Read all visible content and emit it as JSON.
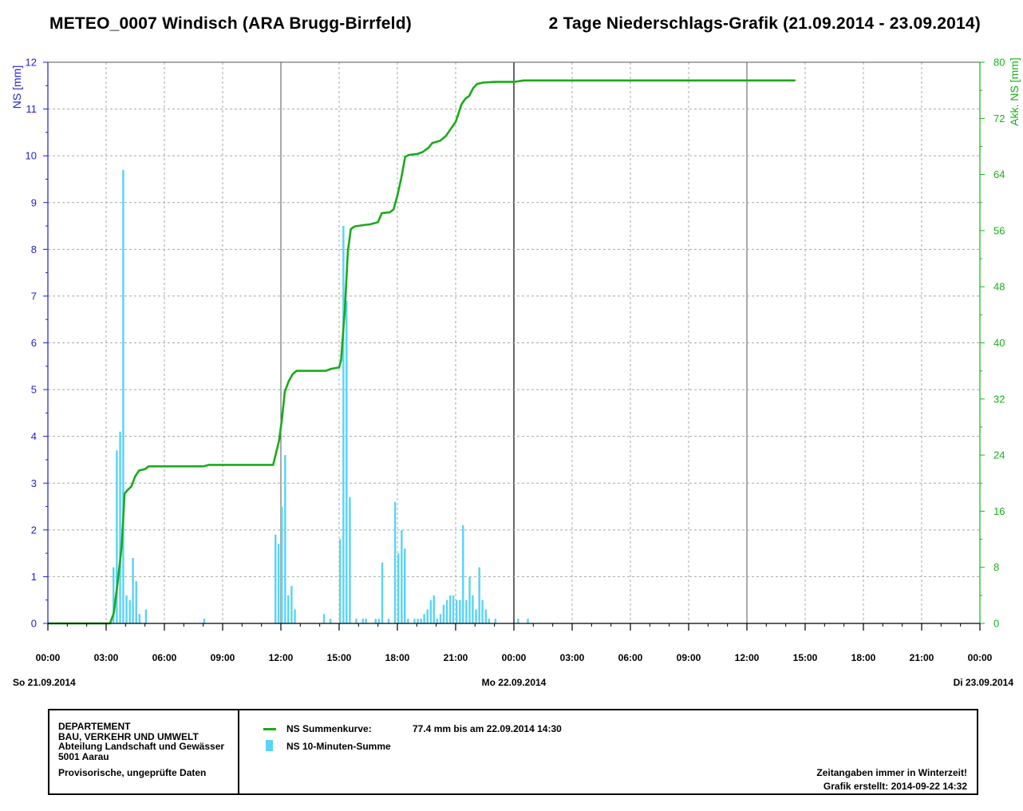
{
  "header": {
    "title_left": "METEO_0007 Windisch (ARA Brugg-Birrfeld)",
    "title_right": "2 Tage Niederschlags-Grafik (21.09.2014 - 23.09.2014)"
  },
  "chart_data": {
    "type": "bar",
    "title": "2 Tage Niederschlags-Grafik (21.09.2014 - 23.09.2014)",
    "ylabel_left": "NS [mm]",
    "ylabel_right": "Akk. NS [mm]",
    "x_range_hours": [
      0,
      48
    ],
    "ylim_left": [
      0,
      12
    ],
    "ylim_right": [
      0,
      80
    ],
    "left_ticks": [
      0,
      1,
      2,
      3,
      4,
      5,
      6,
      7,
      8,
      9,
      10,
      11,
      12
    ],
    "right_ticks": [
      0,
      8,
      16,
      24,
      32,
      40,
      48,
      56,
      64,
      72,
      80
    ],
    "x_tick_hours": [
      0,
      3,
      6,
      9,
      12,
      15,
      18,
      21,
      24,
      27,
      30,
      33,
      36,
      39,
      42,
      45,
      48
    ],
    "x_tick_labels": [
      "00:00",
      "03:00",
      "06:00",
      "09:00",
      "12:00",
      "15:00",
      "18:00",
      "21:00",
      "00:00",
      "03:00",
      "06:00",
      "09:00",
      "12:00",
      "15:00",
      "18:00",
      "21:00",
      "00:00"
    ],
    "day_labels": [
      {
        "hour": 0,
        "label": "So 21.09.2014"
      },
      {
        "hour": 24,
        "label": "Mo 22.09.2014"
      },
      {
        "hour": 48,
        "label": "Di 23.09.2014"
      }
    ],
    "day_separators_hours": [
      24
    ],
    "series": [
      {
        "name": "NS 10-Minuten-Summe",
        "type": "bar",
        "color": "#5ad4f6",
        "bar_width_hours": 0.1667,
        "points": [
          [
            3.33,
            1.2
          ],
          [
            3.5,
            3.7
          ],
          [
            3.67,
            4.1
          ],
          [
            3.83,
            9.7
          ],
          [
            4.0,
            0.6
          ],
          [
            4.17,
            0.5
          ],
          [
            4.33,
            1.4
          ],
          [
            4.5,
            0.9
          ],
          [
            4.67,
            0.2
          ],
          [
            5.0,
            0.3
          ],
          [
            8.0,
            0.1
          ],
          [
            11.67,
            1.9
          ],
          [
            11.83,
            1.7
          ],
          [
            12.0,
            2.5
          ],
          [
            12.17,
            3.6
          ],
          [
            12.33,
            0.6
          ],
          [
            12.5,
            0.8
          ],
          [
            12.67,
            0.3
          ],
          [
            14.17,
            0.2
          ],
          [
            14.5,
            0.1
          ],
          [
            15.0,
            1.8
          ],
          [
            15.17,
            8.5
          ],
          [
            15.33,
            6.9
          ],
          [
            15.5,
            2.7
          ],
          [
            15.83,
            0.1
          ],
          [
            16.17,
            0.1
          ],
          [
            16.33,
            0.1
          ],
          [
            16.83,
            0.1
          ],
          [
            17.0,
            0.1
          ],
          [
            17.17,
            1.3
          ],
          [
            17.5,
            0.1
          ],
          [
            17.83,
            2.6
          ],
          [
            18.0,
            1.5
          ],
          [
            18.17,
            2.0
          ],
          [
            18.33,
            1.6
          ],
          [
            18.5,
            0.1
          ],
          [
            18.83,
            0.1
          ],
          [
            19.0,
            0.1
          ],
          [
            19.17,
            0.1
          ],
          [
            19.33,
            0.2
          ],
          [
            19.5,
            0.3
          ],
          [
            19.67,
            0.5
          ],
          [
            19.83,
            0.6
          ],
          [
            20.0,
            0.1
          ],
          [
            20.17,
            0.2
          ],
          [
            20.33,
            0.4
          ],
          [
            20.5,
            0.5
          ],
          [
            20.67,
            0.6
          ],
          [
            20.83,
            0.6
          ],
          [
            21.0,
            0.5
          ],
          [
            21.17,
            0.5
          ],
          [
            21.33,
            2.1
          ],
          [
            21.5,
            0.5
          ],
          [
            21.67,
            1.0
          ],
          [
            21.83,
            0.6
          ],
          [
            22.0,
            0.3
          ],
          [
            22.17,
            1.2
          ],
          [
            22.33,
            0.5
          ],
          [
            22.5,
            0.3
          ],
          [
            22.67,
            0.1
          ],
          [
            23.0,
            0.1
          ],
          [
            24.17,
            0.1
          ],
          [
            24.67,
            0.1
          ]
        ]
      },
      {
        "name": "NS Summenkurve",
        "type": "line",
        "axis": "right",
        "color": "#1aaa1a",
        "points": [
          [
            0,
            0
          ],
          [
            3.2,
            0
          ],
          [
            3.4,
            1.5
          ],
          [
            3.6,
            6
          ],
          [
            3.8,
            11
          ],
          [
            3.95,
            18.5
          ],
          [
            4.1,
            19
          ],
          [
            4.3,
            19.5
          ],
          [
            4.5,
            21
          ],
          [
            4.7,
            21.8
          ],
          [
            5.0,
            22
          ],
          [
            5.2,
            22.4
          ],
          [
            8.0,
            22.4
          ],
          [
            8.3,
            22.6
          ],
          [
            11.6,
            22.6
          ],
          [
            11.9,
            26
          ],
          [
            12.05,
            29
          ],
          [
            12.2,
            33
          ],
          [
            12.4,
            34.5
          ],
          [
            12.6,
            35.5
          ],
          [
            12.8,
            36
          ],
          [
            14.3,
            36
          ],
          [
            14.6,
            36.3
          ],
          [
            15.0,
            36.5
          ],
          [
            15.1,
            37.5
          ],
          [
            15.3,
            45
          ],
          [
            15.45,
            53
          ],
          [
            15.6,
            56.2
          ],
          [
            15.8,
            56.6
          ],
          [
            16.3,
            56.8
          ],
          [
            16.6,
            56.9
          ],
          [
            17.0,
            57.2
          ],
          [
            17.2,
            58.5
          ],
          [
            17.6,
            58.6
          ],
          [
            17.8,
            59
          ],
          [
            18.0,
            61
          ],
          [
            18.2,
            63.5
          ],
          [
            18.4,
            66.5
          ],
          [
            18.6,
            66.8
          ],
          [
            19.0,
            66.9
          ],
          [
            19.3,
            67.2
          ],
          [
            19.6,
            67.8
          ],
          [
            19.8,
            68.5
          ],
          [
            20.2,
            68.8
          ],
          [
            20.5,
            69.5
          ],
          [
            20.8,
            70.7
          ],
          [
            21.0,
            71.5
          ],
          [
            21.1,
            72.3
          ],
          [
            21.3,
            74
          ],
          [
            21.5,
            74.8
          ],
          [
            21.7,
            75.2
          ],
          [
            21.9,
            76.3
          ],
          [
            22.1,
            76.9
          ],
          [
            22.4,
            77.1
          ],
          [
            23.0,
            77.2
          ],
          [
            24.0,
            77.2
          ],
          [
            24.5,
            77.4
          ],
          [
            38.5,
            77.4
          ]
        ]
      }
    ]
  },
  "legend": {
    "items": [
      {
        "label": "NS Summenkurve:",
        "value": "77.4 mm bis am 22.09.2014 14:30",
        "color": "#1aaa1a"
      },
      {
        "label": "NS 10-Minuten-Summe",
        "color": "#5ad4f6"
      }
    ]
  },
  "footer": {
    "dept_line1": "DEPARTEMENT",
    "dept_line2": "BAU, VERKEHR UND UMWELT",
    "dept_line3": "Abteilung Landschaft und Gewässer",
    "dept_line4": "5001 Aarau",
    "provisional": "Provisorische, ungeprüfte Daten",
    "note_time": "Zeitangaben immer in Winterzeit!",
    "note_created": "Grafik erstellt: 2014-09-22 14:32"
  },
  "colors": {
    "left_axis": "#1f1fd4",
    "right_axis": "#18b018",
    "grid": "#a8a8a8",
    "bars": "#5ad4f6",
    "curve": "#1aaa1a"
  }
}
